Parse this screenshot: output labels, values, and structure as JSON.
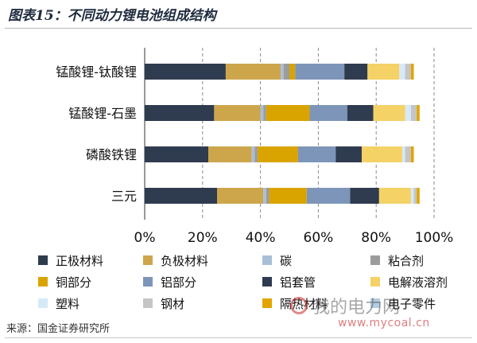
{
  "title": "图表15：不同动力锂电池组成结构",
  "source": "来源：国金证券研究所",
  "watermark": {
    "text": "我的电力网",
    "url": "www.mycoal.cn"
  },
  "chart_data": {
    "type": "bar",
    "orientation": "horizontal",
    "stacked": true,
    "percent": true,
    "categories": [
      "锰酸锂-钛酸锂",
      "锰酸锂-石墨",
      "磷酸铁锂",
      "三元"
    ],
    "xlim": [
      0,
      100
    ],
    "xticks": [
      "0%",
      "20%",
      "40%",
      "60%",
      "80%",
      "100%"
    ],
    "grid": "vertical-dashed",
    "legend_position": "bottom",
    "series": [
      {
        "name": "正极材料",
        "color": "#2f3b4f",
        "values": [
          28,
          24,
          22,
          25
        ]
      },
      {
        "name": "负极材料",
        "color": "#cda64c",
        "values": [
          19,
          16,
          15,
          16
        ]
      },
      {
        "name": "碳",
        "color": "#a8bfd9",
        "values": [
          1,
          1,
          1,
          1
        ]
      },
      {
        "name": "粘合剂",
        "color": "#9c9c9c",
        "values": [
          2,
          1,
          1,
          1
        ]
      },
      {
        "name": "铜部分",
        "color": "#d9a400",
        "values": [
          2,
          15,
          14,
          13
        ]
      },
      {
        "name": "铝部分",
        "color": "#7d95b8",
        "values": [
          17,
          13,
          13,
          15
        ]
      },
      {
        "name": "铝套管",
        "color": "#2f3b4f",
        "values": [
          8,
          9,
          9,
          10
        ]
      },
      {
        "name": "电解液溶剂",
        "color": "#f4d266",
        "values": [
          11,
          11,
          14,
          11
        ]
      },
      {
        "name": "塑料",
        "color": "#d6e9f7",
        "values": [
          2,
          2,
          1,
          1
        ]
      },
      {
        "name": "钢材",
        "color": "#c5c5c5",
        "values": [
          2,
          2,
          2,
          1
        ]
      },
      {
        "name": "隔热材料",
        "color": "#e2a400",
        "values": [
          1,
          1,
          1,
          1
        ]
      },
      {
        "name": "电子零件",
        "color": "#b5ccdf",
        "values": [
          0,
          0,
          0,
          0
        ]
      }
    ]
  }
}
